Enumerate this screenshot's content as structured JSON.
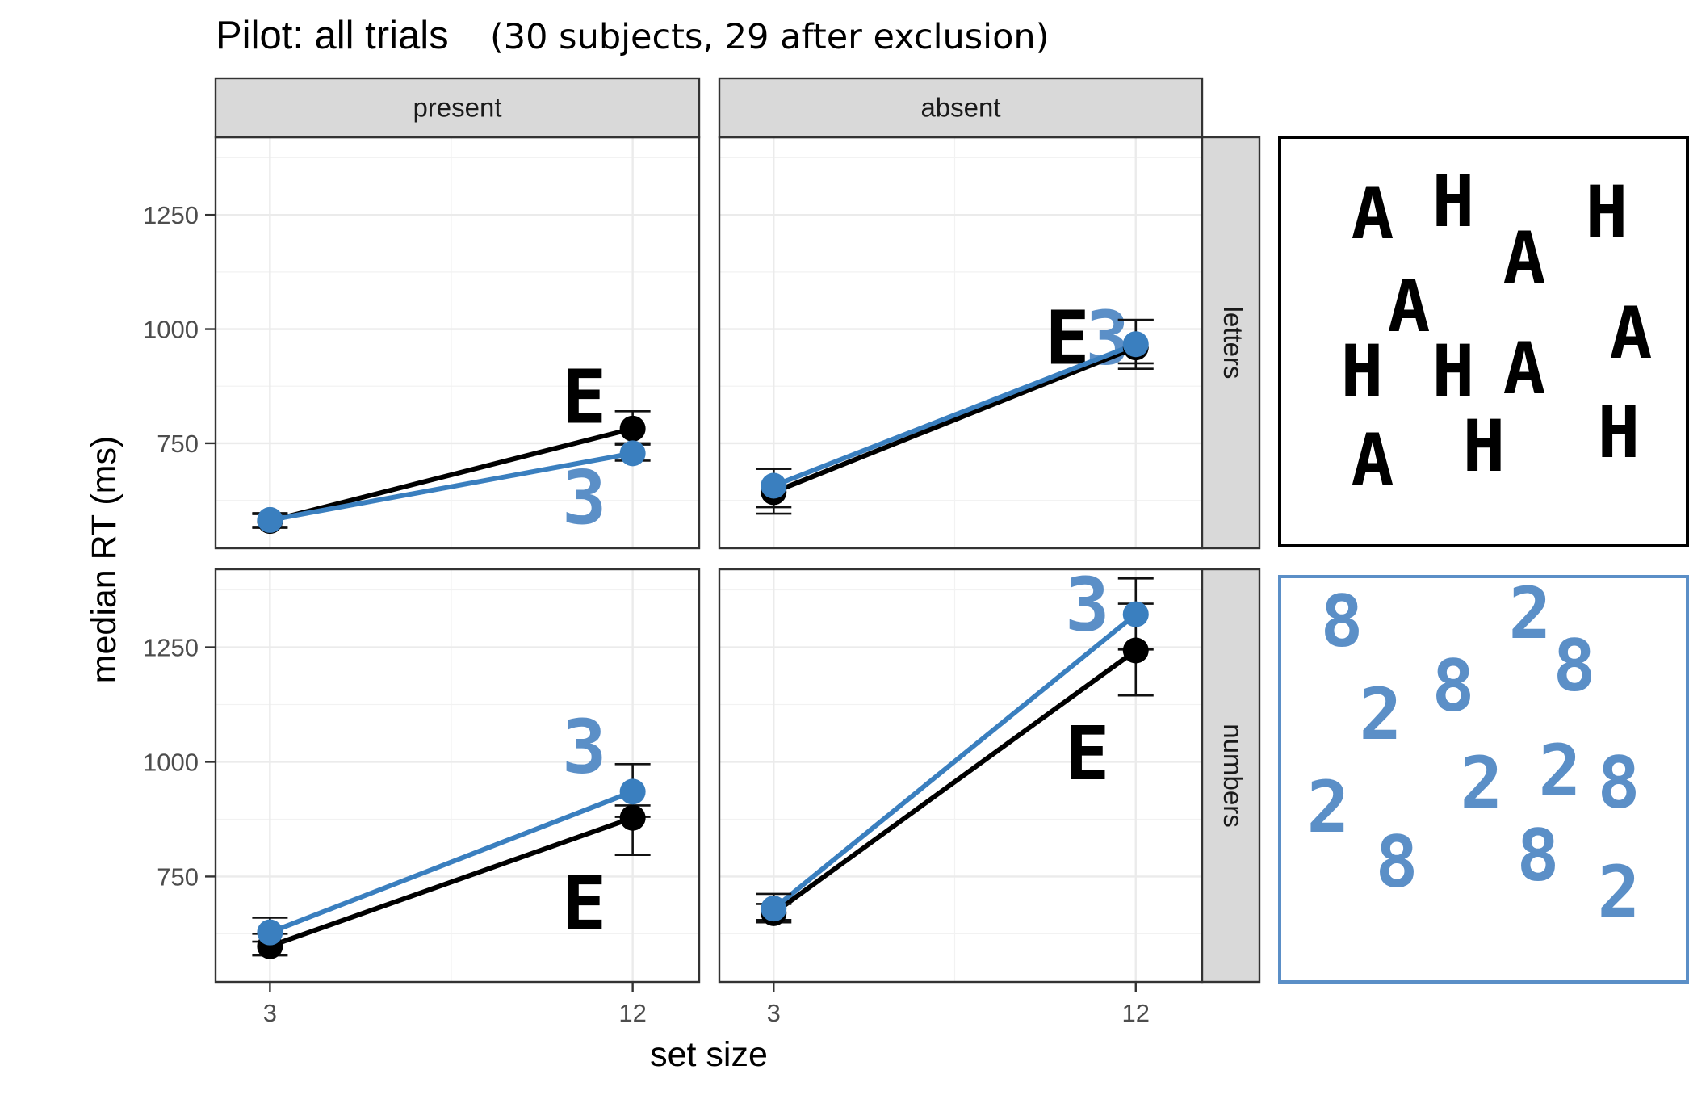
{
  "title": "Pilot: all trials",
  "subtitle": "(30 subjects, 29 after exclusion)",
  "colors": {
    "series_black": "#000000",
    "series_blue": "#3a7fbf",
    "stimulus_blue": "#5b8fc7",
    "strip_fill": "#d9d9d9",
    "gridline": "#ebebeb"
  },
  "chart_data": {
    "type": "line",
    "xlabel": "set size",
    "ylabel": "median RT (ms)",
    "x": [
      3,
      12
    ],
    "x_tick_labels": [
      "3",
      "12"
    ],
    "ylim": [
      520,
      1420
    ],
    "y_ticks": [
      750,
      1000,
      1250
    ],
    "y_tick_labels": [
      "750",
      "1000",
      "1250"
    ],
    "grid": true,
    "columns": [
      "present",
      "absent"
    ],
    "rows": [
      "letters",
      "numbers"
    ],
    "panels": [
      {
        "column": "present",
        "row": "letters",
        "series": [
          {
            "color": "black",
            "values": [
              580,
              782
            ],
            "errors": [
              [
                565,
                595
              ],
              [
                750,
                820
              ]
            ],
            "glyph": "E"
          },
          {
            "color": "blue",
            "values": [
              582,
              728
            ],
            "errors": [
              [
                567,
                597
              ],
              [
                712,
                747
              ]
            ],
            "glyph": "3"
          }
        ],
        "glyph_annotations": [
          {
            "glyph": "E",
            "series": "black",
            "x": 12,
            "y": 848
          },
          {
            "glyph": "3",
            "series": "blue",
            "x": 12,
            "y": 628
          }
        ]
      },
      {
        "column": "absent",
        "row": "letters",
        "series": [
          {
            "color": "black",
            "values": [
              643,
              960
            ],
            "errors": [
              [
                596,
                694
              ],
              [
                913,
                1020
              ]
            ],
            "glyph": "E"
          },
          {
            "color": "blue",
            "values": [
              657,
              967
            ],
            "errors": [
              [
                610,
                694
              ],
              [
                925,
                1020
              ]
            ],
            "glyph": "3"
          }
        ],
        "glyph_annotations": [
          {
            "glyph": "E",
            "series": "black",
            "x": 10.3,
            "y": 977
          },
          {
            "glyph": "3",
            "series": "blue",
            "x": 11.3,
            "y": 977
          }
        ]
      },
      {
        "column": "present",
        "row": "numbers",
        "series": [
          {
            "color": "black",
            "values": [
              598,
              878
            ],
            "errors": [
              [
                578,
                625
              ],
              [
                797,
                880
              ]
            ],
            "glyph": "E"
          },
          {
            "color": "blue",
            "values": [
              628,
              935
            ],
            "errors": [
              [
                608,
                660
              ],
              [
                905,
                995
              ]
            ],
            "glyph": "3"
          }
        ],
        "glyph_annotations": [
          {
            "glyph": "E",
            "series": "black",
            "x": 12,
            "y": 688
          },
          {
            "glyph": "3",
            "series": "blue",
            "x": 12,
            "y": 1030
          }
        ]
      },
      {
        "column": "absent",
        "row": "numbers",
        "series": [
          {
            "color": "black",
            "values": [
              670,
              1243
            ],
            "errors": [
              [
                650,
                690
              ],
              [
                1145,
                1345
              ]
            ],
            "glyph": "E"
          },
          {
            "color": "blue",
            "values": [
              680,
              1322
            ],
            "errors": [
              [
                655,
                712
              ],
              [
                1245,
                1400
              ]
            ],
            "glyph": "3"
          }
        ],
        "glyph_annotations": [
          {
            "glyph": "E",
            "series": "black",
            "x": 12,
            "y": 1015
          },
          {
            "glyph": "3",
            "series": "blue",
            "x": 12,
            "y": 1340
          }
        ]
      }
    ]
  },
  "stimulus_examples": [
    {
      "row": "letters",
      "target": "A",
      "distractor": "H",
      "color": "black",
      "items": [
        "A",
        "H",
        "H",
        "A",
        "A",
        "A",
        "H",
        "H",
        "A",
        "A",
        "H",
        "H"
      ]
    },
    {
      "row": "numbers",
      "target": "2",
      "distractor": "8",
      "color": "blue",
      "items": [
        "8",
        "2",
        "8",
        "2",
        "8",
        "2",
        "2",
        "8",
        "2",
        "8",
        "8",
        "2"
      ]
    }
  ]
}
